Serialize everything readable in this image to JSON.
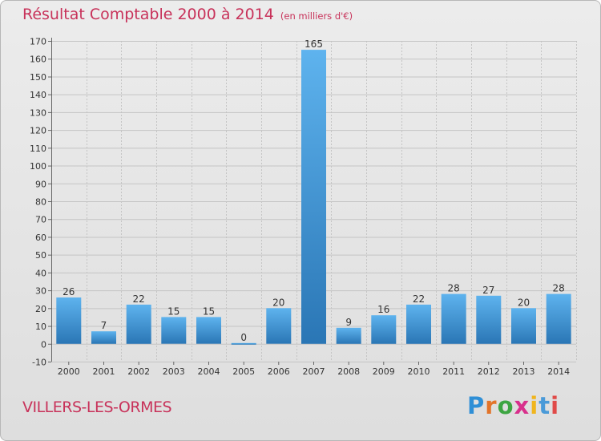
{
  "header": {
    "title": "Résultat Comptable 2000 à 2014",
    "unit": "(en milliers d'€)"
  },
  "footer": {
    "commune": "VILLERS-LES-ORMES",
    "logo_letters": [
      "P",
      "r",
      "o",
      "x",
      "i",
      "t",
      "i"
    ],
    "logo_colors": [
      "#2f8fd6",
      "#e2742a",
      "#3da542",
      "#d8308c",
      "#f0b51e",
      "#4a9ad8",
      "#e04a48"
    ]
  },
  "colors": {
    "title": "#c8325a",
    "bar_light": "#5eb3ee",
    "bar_dark": "#2a76b5",
    "grid": "#c4c4c4",
    "text": "#333333"
  },
  "chart_data": {
    "type": "bar",
    "title": "Résultat Comptable 2000 à 2014",
    "xlabel": "",
    "ylabel": "en milliers d'€",
    "categories": [
      "2000",
      "2001",
      "2002",
      "2003",
      "2004",
      "2005",
      "2006",
      "2007",
      "2008",
      "2009",
      "2010",
      "2011",
      "2012",
      "2013",
      "2014"
    ],
    "values": [
      26,
      7,
      22,
      15,
      15,
      0,
      20,
      165,
      9,
      16,
      22,
      28,
      27,
      20,
      28
    ],
    "ylim": [
      -10,
      170
    ],
    "yticks": [
      -10,
      0,
      10,
      20,
      30,
      40,
      50,
      60,
      70,
      80,
      90,
      100,
      110,
      120,
      130,
      140,
      150,
      160,
      170
    ],
    "grid": true,
    "data_labels": true
  }
}
